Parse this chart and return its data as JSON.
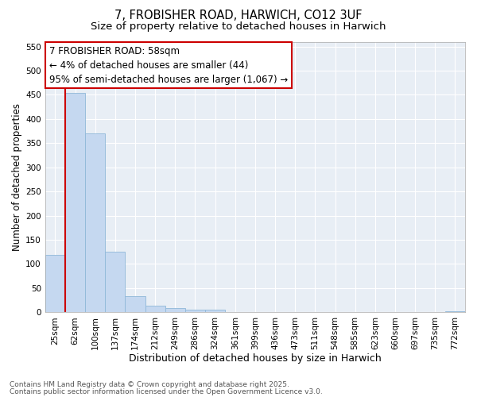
{
  "title_line1": "7, FROBISHER ROAD, HARWICH, CO12 3UF",
  "title_line2": "Size of property relative to detached houses in Harwich",
  "xlabel": "Distribution of detached houses by size in Harwich",
  "ylabel": "Number of detached properties",
  "categories": [
    "25sqm",
    "62sqm",
    "100sqm",
    "137sqm",
    "174sqm",
    "212sqm",
    "249sqm",
    "286sqm",
    "324sqm",
    "361sqm",
    "399sqm",
    "436sqm",
    "473sqm",
    "511sqm",
    "548sqm",
    "585sqm",
    "623sqm",
    "660sqm",
    "697sqm",
    "735sqm",
    "772sqm"
  ],
  "values": [
    119,
    454,
    370,
    126,
    34,
    14,
    9,
    5,
    5,
    1,
    0,
    1,
    0,
    0,
    1,
    0,
    0,
    0,
    0,
    0,
    3
  ],
  "bar_color": "#c5d8f0",
  "bar_edge_color": "#8fb8d8",
  "marker_line_color": "#cc0000",
  "ylim": [
    0,
    560
  ],
  "yticks": [
    0,
    50,
    100,
    150,
    200,
    250,
    300,
    350,
    400,
    450,
    500,
    550
  ],
  "annotation_box_text": "7 FROBISHER ROAD: 58sqm\n← 4% of detached houses are smaller (44)\n95% of semi-detached houses are larger (1,067) →",
  "annotation_box_color": "#cc0000",
  "background_color": "#e8eef5",
  "grid_color": "#ffffff",
  "footer_line1": "Contains HM Land Registry data © Crown copyright and database right 2025.",
  "footer_line2": "Contains public sector information licensed under the Open Government Licence v3.0.",
  "title_fontsize": 10.5,
  "subtitle_fontsize": 9.5,
  "xlabel_fontsize": 9,
  "ylabel_fontsize": 8.5,
  "tick_fontsize": 7.5,
  "annotation_fontsize": 8.5,
  "footer_fontsize": 6.5
}
